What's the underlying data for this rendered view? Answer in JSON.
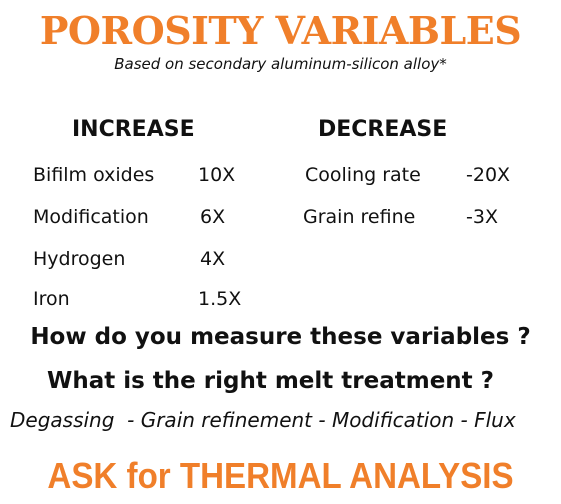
{
  "header": {
    "title": "POROSITY VARIABLES",
    "subtitle": "Based on secondary aluminum-silicon alloy*"
  },
  "increase": {
    "heading": "INCREASE",
    "items": [
      {
        "label": "Bifilm oxides",
        "value": "10X"
      },
      {
        "label": "Modification",
        "value": "6X"
      },
      {
        "label": "Hydrogen",
        "value": "4X"
      },
      {
        "label": "Iron",
        "value": "1.5X"
      }
    ]
  },
  "decrease": {
    "heading": "DECREASE",
    "items": [
      {
        "label": "Cooling rate",
        "value": "-20X"
      },
      {
        "label": "Grain refine",
        "value": "-3X"
      }
    ]
  },
  "questions": [
    "How do you measure these variables ?",
    "What is the right melt treatment ?"
  ],
  "treatments": "Degassing  - Grain refinement - Modification - Flux",
  "call_to_action": "ASK for THERMAL ANALYSIS"
}
